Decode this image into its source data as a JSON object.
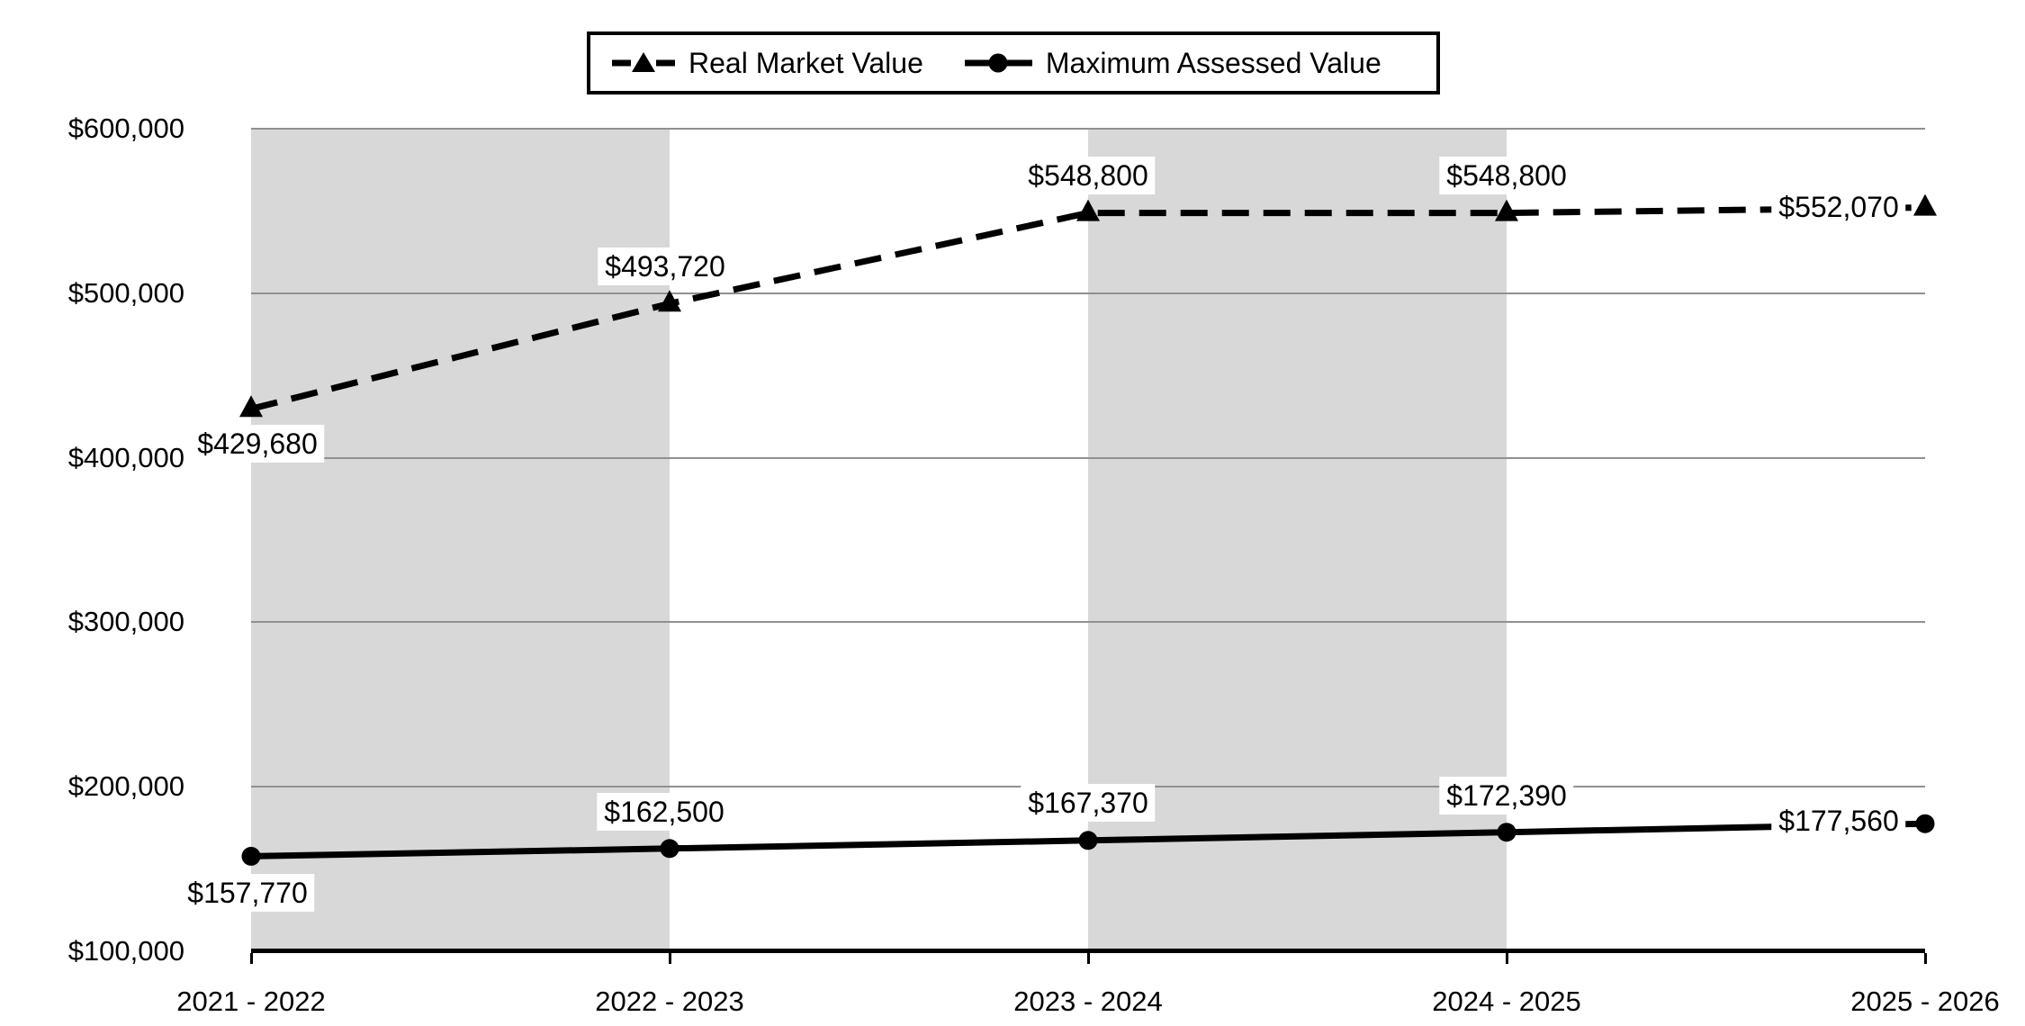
{
  "legend": {
    "items": [
      {
        "label": "Real Market Value",
        "marker": "dashed-line-with-triangle"
      },
      {
        "label": "Maximum Assessed Value",
        "marker": "solid-line-with-circle"
      }
    ]
  },
  "y_axis": {
    "ticks": [
      "$600,000",
      "$500,000",
      "$400,000",
      "$300,000",
      "$200,000",
      "$100,000"
    ]
  },
  "x_axis": {
    "categories": [
      "2021 - 2022",
      "2022 - 2023",
      "2023 - 2024",
      "2024 - 2025",
      "2025 - 2026"
    ]
  },
  "chart_data": {
    "type": "line",
    "categories": [
      "2021 - 2022",
      "2022 - 2023",
      "2023 - 2024",
      "2024 - 2025",
      "2025 - 2026"
    ],
    "series": [
      {
        "name": "Real Market Value",
        "line_style": "dashed",
        "marker": "triangle",
        "color": "#000000",
        "values": [
          429680,
          493720,
          548800,
          548800,
          552070
        ],
        "labels": [
          "$429,680",
          "$493,720",
          "$548,800",
          "$548,800",
          "$552,070"
        ]
      },
      {
        "name": "Maximum Assessed Value",
        "line_style": "solid",
        "marker": "circle",
        "color": "#000000",
        "values": [
          157770,
          162500,
          167370,
          172390,
          177560
        ],
        "labels": [
          "$157,770",
          "$162,500",
          "$167,370",
          "$172,390",
          "$177,560"
        ]
      }
    ],
    "ylim": [
      100000,
      600000
    ],
    "ytick_interval": 100000,
    "grid": "horizontal",
    "legend_position": "top-center",
    "plot_bands": {
      "shaded_category_intervals": [
        0,
        2
      ],
      "color": "#d8d8d8"
    }
  },
  "colors": {
    "line": "#000000",
    "band": "#d8d8d8",
    "gridline": "#909090",
    "axis": "#000000",
    "background": "#ffffff",
    "label_background": "#ffffff"
  }
}
